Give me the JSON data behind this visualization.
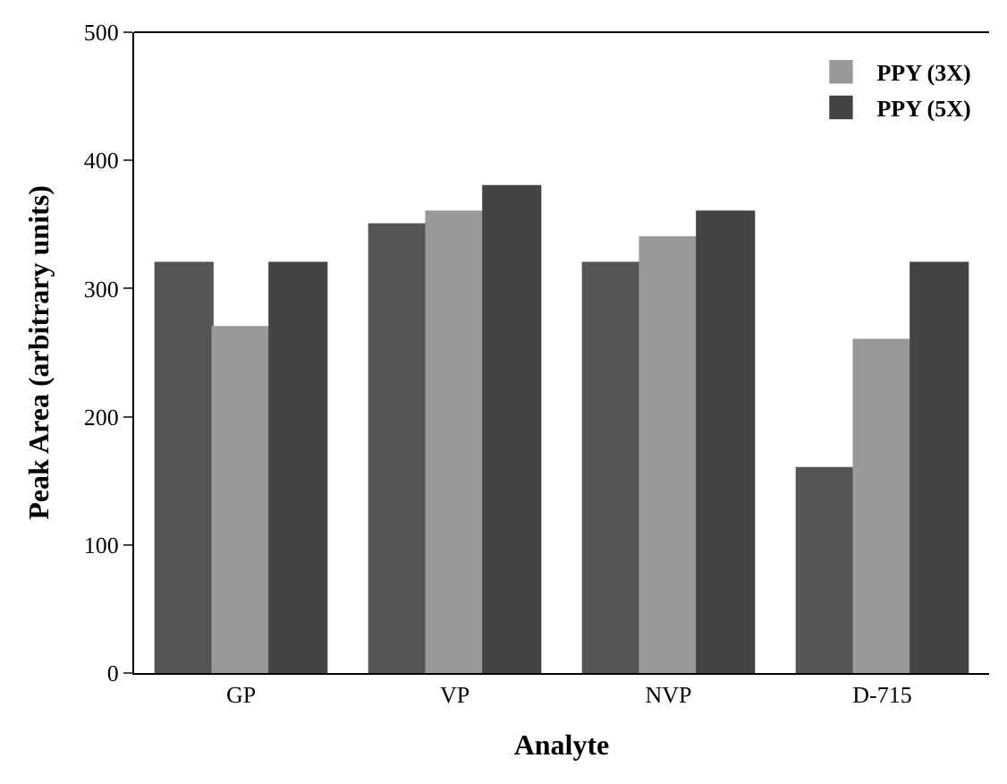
{
  "chart_data": {
    "type": "bar",
    "xlabel": "Analyte",
    "ylabel": "Peak Area (arbitrary units)",
    "categories": [
      "GP",
      "VP",
      "NVP",
      "D-715"
    ],
    "series": [
      {
        "color": "#555555",
        "values": [
          320,
          350,
          320,
          160
        ]
      },
      {
        "name": "PPY (3X)",
        "color": "#999999",
        "values": [
          270,
          360,
          340,
          260
        ]
      },
      {
        "name": "PPY (5X)",
        "color": "#444444",
        "values": [
          320,
          380,
          360,
          320
        ]
      }
    ],
    "ylim": [
      0,
      500
    ],
    "yticks": [
      0,
      100,
      200,
      300,
      400,
      500
    ],
    "legend": "top right"
  }
}
